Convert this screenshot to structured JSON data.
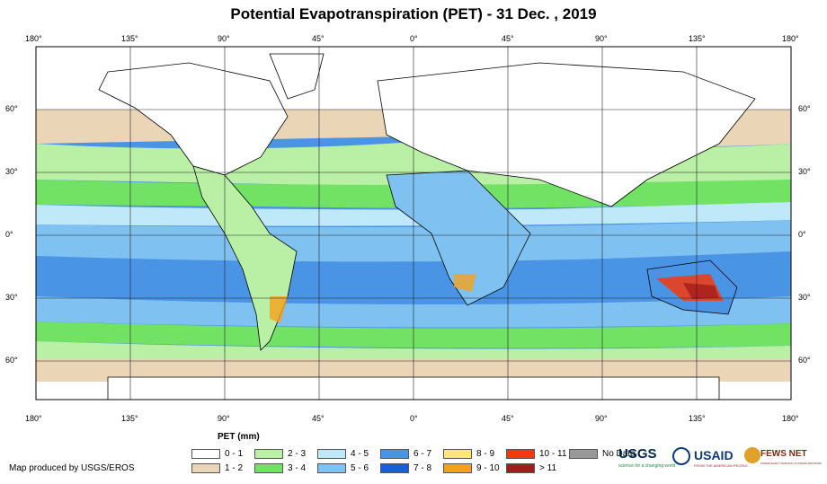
{
  "title": "Potential Evapotranspiration (PET) - 31 Dec. , 2019",
  "longitude_labels": [
    "180°",
    "135°",
    "90°",
    "45°",
    "0°",
    "45°",
    "90°",
    "135°",
    "180°"
  ],
  "latitude_labels": [
    "60°",
    "30°",
    "0°",
    "30°",
    "60°"
  ],
  "legend": {
    "title": "PET (mm)",
    "items": [
      {
        "label": "0 - 1",
        "color": "#ffffff"
      },
      {
        "label": "1 - 2",
        "color": "#ead6b6"
      },
      {
        "label": "2 - 3",
        "color": "#b9f0a6"
      },
      {
        "label": "3 - 4",
        "color": "#72e264"
      },
      {
        "label": "4 - 5",
        "color": "#bfe9f9"
      },
      {
        "label": "5 - 6",
        "color": "#7fc1f0"
      },
      {
        "label": "6 - 7",
        "color": "#4a94e6"
      },
      {
        "label": "7 - 8",
        "color": "#1b5fd8"
      },
      {
        "label": "8 - 9",
        "color": "#ffe67a"
      },
      {
        "label": "9 - 10",
        "color": "#f5a21a"
      },
      {
        "label": "10 - 11",
        "color": "#f33a0c"
      },
      {
        "label": "> 11",
        "color": "#a21c1c"
      },
      {
        "label": "No Data",
        "color": "#999999"
      }
    ]
  },
  "credit": "Map produced by USGS/EROS",
  "logos": {
    "usgs": "USGS",
    "usgs_tagline": "science for a changing world",
    "usaid": "USAID",
    "usaid_tagline": "FROM THE AMERICAN PEOPLE",
    "fews": "FEWS NET",
    "fews_tagline": "FAMINE EARLY WARNING SYSTEMS NETWORK"
  }
}
